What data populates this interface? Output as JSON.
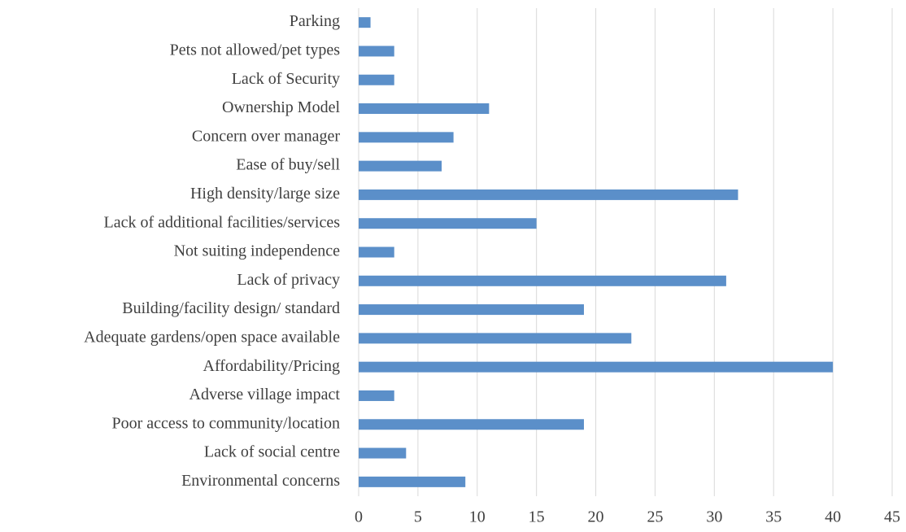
{
  "chart_data": {
    "type": "hbar",
    "categories": [
      "Parking",
      "Pets not allowed/pet types",
      "Lack of Security",
      "Ownership Model",
      "Concern over manager",
      "Ease of buy/sell",
      "High density/large size",
      "Lack of additional facilities/services",
      "Not suiting independence",
      "Lack of privacy",
      "Building/facility design/ standard",
      "Adequate gardens/open space available",
      "Affordability/Pricing",
      "Adverse village impact",
      "Poor access to community/location",
      "Lack of social centre",
      "Environmental concerns"
    ],
    "values": [
      1,
      3,
      3,
      11,
      8,
      7,
      32,
      15,
      3,
      31,
      19,
      23,
      40,
      3,
      19,
      4,
      9
    ],
    "color": "#5b8fc9",
    "xlim": [
      0,
      45
    ],
    "xticks": [
      0,
      5,
      10,
      15,
      20,
      25,
      30,
      35,
      40,
      45
    ],
    "grid": true
  }
}
